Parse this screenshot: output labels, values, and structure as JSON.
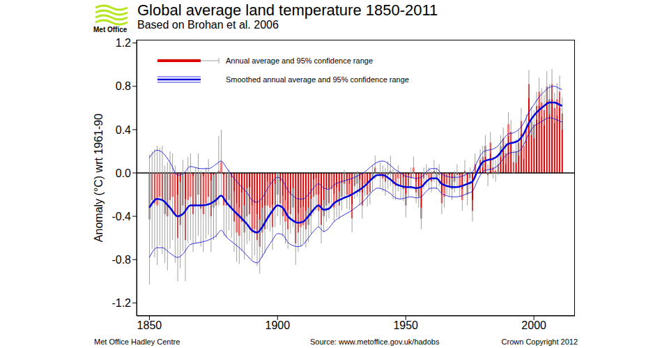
{
  "chart_data": {
    "type": "bar",
    "title": "Global average land temperature 1850-2011",
    "subtitle": "Based on Brohan et al. 2006",
    "logo": "Met Office",
    "footer_left": "Met Office Hadley Centre",
    "footer_center": "Source: www.metoffice.gov.uk/hadobs",
    "footer_right": "Crown Copyright 2012",
    "ylabel": "Anomaly (°C) wrt 1961-90",
    "xlim": [
      1845,
      2016
    ],
    "xticks": [
      1850,
      1900,
      1950,
      2000
    ],
    "ylim": [
      -1.32,
      1.23
    ],
    "yticks": [
      -1.2,
      -0.8,
      -0.4,
      {
        "value": 0,
        "label": "0.0"
      },
      0.4,
      0.8,
      1.2
    ],
    "grid": false,
    "legend": "upper left",
    "series": [
      {
        "name": "Annual average and 95% confidence range",
        "type": "bar",
        "color": "#dd0000",
        "x": [
          1850,
          1851,
          1852,
          1853,
          1854,
          1855,
          1856,
          1857,
          1858,
          1859,
          1860,
          1861,
          1862,
          1863,
          1864,
          1865,
          1866,
          1867,
          1868,
          1869,
          1870,
          1871,
          1872,
          1873,
          1874,
          1875,
          1876,
          1877,
          1878,
          1879,
          1880,
          1881,
          1882,
          1883,
          1884,
          1885,
          1886,
          1887,
          1888,
          1889,
          1890,
          1891,
          1892,
          1893,
          1894,
          1895,
          1896,
          1897,
          1898,
          1899,
          1900,
          1901,
          1902,
          1903,
          1904,
          1905,
          1906,
          1907,
          1908,
          1909,
          1910,
          1911,
          1912,
          1913,
          1914,
          1915,
          1916,
          1917,
          1918,
          1919,
          1920,
          1921,
          1922,
          1923,
          1924,
          1925,
          1926,
          1927,
          1928,
          1929,
          1930,
          1931,
          1932,
          1933,
          1934,
          1935,
          1936,
          1937,
          1938,
          1939,
          1940,
          1941,
          1942,
          1943,
          1944,
          1945,
          1946,
          1947,
          1948,
          1949,
          1950,
          1951,
          1952,
          1953,
          1954,
          1955,
          1956,
          1957,
          1958,
          1959,
          1960,
          1961,
          1962,
          1963,
          1964,
          1965,
          1966,
          1967,
          1968,
          1969,
          1970,
          1971,
          1972,
          1973,
          1974,
          1975,
          1976,
          1977,
          1978,
          1979,
          1980,
          1981,
          1982,
          1983,
          1984,
          1985,
          1986,
          1987,
          1988,
          1989,
          1990,
          1991,
          1992,
          1993,
          1994,
          1995,
          1996,
          1997,
          1998,
          1999,
          2000,
          2001,
          2002,
          2003,
          2004,
          2005,
          2006,
          2007,
          2008,
          2009,
          2010,
          2011
        ],
        "values": [
          -0.43,
          -0.25,
          -0.28,
          -0.3,
          -0.22,
          -0.25,
          -0.38,
          -0.4,
          -0.25,
          -0.22,
          -0.38,
          -0.6,
          -0.48,
          -0.3,
          -0.62,
          -0.25,
          -0.22,
          -0.38,
          -0.3,
          -0.2,
          -0.33,
          -0.38,
          -0.28,
          -0.22,
          -0.4,
          -0.32,
          -0.3,
          0.02,
          0.1,
          -0.3,
          -0.3,
          -0.25,
          -0.32,
          -0.45,
          -0.55,
          -0.58,
          -0.45,
          -0.55,
          -0.4,
          -0.38,
          -0.55,
          -0.52,
          -0.62,
          -0.68,
          -0.55,
          -0.52,
          -0.3,
          -0.32,
          -0.5,
          -0.3,
          -0.2,
          -0.28,
          -0.4,
          -0.45,
          -0.52,
          -0.38,
          -0.32,
          -0.65,
          -0.55,
          -0.5,
          -0.48,
          -0.52,
          -0.48,
          -0.4,
          -0.22,
          -0.2,
          -0.35,
          -0.48,
          -0.4,
          -0.3,
          -0.28,
          -0.15,
          -0.32,
          -0.27,
          -0.3,
          -0.22,
          -0.1,
          -0.2,
          -0.22,
          -0.42,
          -0.12,
          -0.1,
          -0.18,
          -0.3,
          -0.1,
          -0.2,
          -0.18,
          -0.05,
          0.05,
          0.0,
          -0.02,
          -0.05,
          -0.08,
          -0.02,
          0.02,
          -0.1,
          -0.12,
          -0.05,
          -0.12,
          -0.15,
          -0.3,
          -0.12,
          -0.05,
          0.05,
          -0.18,
          -0.22,
          -0.42,
          -0.05,
          -0.02,
          -0.05,
          -0.08,
          0.02,
          -0.05,
          -0.02,
          -0.28,
          -0.22,
          -0.1,
          -0.12,
          -0.15,
          -0.08,
          -0.02,
          -0.12,
          -0.25,
          0.02,
          -0.2,
          -0.05,
          -0.35,
          0.08,
          0.0,
          0.12,
          0.15,
          0.25,
          -0.02,
          0.28,
          0.05,
          0.02,
          0.08,
          0.25,
          0.32,
          0.18,
          0.45,
          0.38,
          0.1,
          0.2,
          0.28,
          0.48,
          0.25,
          0.42,
          0.82,
          0.48,
          0.45,
          0.62,
          0.75,
          0.65,
          0.58,
          0.8,
          0.68,
          0.82,
          0.6,
          0.68,
          0.75,
          0.55
        ],
        "error": [
          0.6,
          0.45,
          0.5,
          0.55,
          0.45,
          0.5,
          0.45,
          0.5,
          0.45,
          0.4,
          0.45,
          0.4,
          0.4,
          0.42,
          0.38,
          0.4,
          0.4,
          0.35,
          0.35,
          0.38,
          0.35,
          0.35,
          0.33,
          0.35,
          0.33,
          0.3,
          0.3,
          0.32,
          0.3,
          0.28,
          0.3,
          0.28,
          0.28,
          0.28,
          0.27,
          0.26,
          0.27,
          0.25,
          0.26,
          0.25,
          0.25,
          0.24,
          0.24,
          0.25,
          0.23,
          0.22,
          0.22,
          0.22,
          0.21,
          0.2,
          0.2,
          0.2,
          0.19,
          0.2,
          0.18,
          0.18,
          0.18,
          0.2,
          0.18,
          0.18,
          0.17,
          0.17,
          0.16,
          0.16,
          0.16,
          0.15,
          0.15,
          0.17,
          0.15,
          0.15,
          0.14,
          0.14,
          0.13,
          0.14,
          0.13,
          0.13,
          0.13,
          0.13,
          0.12,
          0.13,
          0.12,
          0.12,
          0.12,
          0.12,
          0.11,
          0.11,
          0.11,
          0.12,
          0.11,
          0.11,
          0.12,
          0.12,
          0.13,
          0.13,
          0.14,
          0.14,
          0.13,
          0.12,
          0.12,
          0.11,
          0.11,
          0.1,
          0.1,
          0.1,
          0.1,
          0.1,
          0.1,
          0.1,
          0.1,
          0.1,
          0.1,
          0.1,
          0.1,
          0.1,
          0.1,
          0.1,
          0.1,
          0.1,
          0.1,
          0.1,
          0.1,
          0.1,
          0.1,
          0.1,
          0.1,
          0.1,
          0.1,
          0.1,
          0.1,
          0.1,
          0.1,
          0.1,
          0.1,
          0.1,
          0.1,
          0.1,
          0.1,
          0.1,
          0.1,
          0.1,
          0.11,
          0.11,
          0.11,
          0.11,
          0.12,
          0.12,
          0.12,
          0.12,
          0.13,
          0.13,
          0.13,
          0.13,
          0.13,
          0.13,
          0.14,
          0.14,
          0.14,
          0.14,
          0.14,
          0.15,
          0.15,
          0.15
        ]
      },
      {
        "name": "Smoothed annual average and 95% confidence range",
        "type": "line",
        "color": "#0000dd",
        "x": [
          1850,
          1853,
          1855,
          1858,
          1861,
          1863,
          1866,
          1870,
          1873,
          1876,
          1878,
          1880,
          1883,
          1886,
          1888,
          1890,
          1892,
          1894,
          1896,
          1898,
          1900,
          1902,
          1904,
          1906,
          1908,
          1910,
          1912,
          1914,
          1916,
          1918,
          1920,
          1922,
          1925,
          1928,
          1931,
          1934,
          1937,
          1939,
          1941,
          1944,
          1946,
          1948,
          1950,
          1952,
          1954,
          1956,
          1958,
          1960,
          1962,
          1964,
          1966,
          1968,
          1970,
          1972,
          1974,
          1976,
          1978,
          1980,
          1982,
          1984,
          1986,
          1988,
          1990,
          1992,
          1994,
          1996,
          1998,
          2000,
          2002,
          2004,
          2006,
          2008,
          2010,
          2011
        ],
        "values": [
          -0.32,
          -0.24,
          -0.25,
          -0.32,
          -0.4,
          -0.38,
          -0.3,
          -0.3,
          -0.29,
          -0.25,
          -0.21,
          -0.27,
          -0.35,
          -0.42,
          -0.47,
          -0.53,
          -0.55,
          -0.5,
          -0.42,
          -0.35,
          -0.3,
          -0.32,
          -0.4,
          -0.44,
          -0.46,
          -0.45,
          -0.4,
          -0.34,
          -0.3,
          -0.34,
          -0.33,
          -0.28,
          -0.24,
          -0.21,
          -0.17,
          -0.12,
          -0.05,
          -0.02,
          -0.02,
          -0.06,
          -0.1,
          -0.12,
          -0.13,
          -0.13,
          -0.14,
          -0.13,
          -0.08,
          -0.05,
          -0.05,
          -0.1,
          -0.12,
          -0.13,
          -0.13,
          -0.12,
          -0.1,
          -0.08,
          0.02,
          0.1,
          0.12,
          0.13,
          0.16,
          0.22,
          0.27,
          0.28,
          0.3,
          0.36,
          0.46,
          0.53,
          0.58,
          0.62,
          0.65,
          0.65,
          0.63,
          0.62
        ],
        "lower": [
          -0.78,
          -0.69,
          -0.69,
          -0.74,
          -0.78,
          -0.75,
          -0.66,
          -0.64,
          -0.62,
          -0.58,
          -0.53,
          -0.59,
          -0.65,
          -0.71,
          -0.76,
          -0.81,
          -0.83,
          -0.77,
          -0.69,
          -0.62,
          -0.56,
          -0.57,
          -0.64,
          -0.67,
          -0.68,
          -0.66,
          -0.6,
          -0.54,
          -0.5,
          -0.54,
          -0.51,
          -0.45,
          -0.4,
          -0.36,
          -0.31,
          -0.25,
          -0.17,
          -0.14,
          -0.15,
          -0.19,
          -0.23,
          -0.24,
          -0.23,
          -0.22,
          -0.23,
          -0.22,
          -0.17,
          -0.14,
          -0.14,
          -0.19,
          -0.21,
          -0.22,
          -0.22,
          -0.21,
          -0.19,
          -0.17,
          -0.07,
          0.01,
          0.03,
          0.04,
          0.07,
          0.13,
          0.18,
          0.19,
          0.2,
          0.26,
          0.36,
          0.43,
          0.46,
          0.49,
          0.51,
          0.5,
          0.48,
          0.47
        ],
        "upper": [
          0.14,
          0.21,
          0.19,
          0.1,
          -0.02,
          -0.01,
          0.06,
          0.04,
          0.04,
          0.08,
          0.11,
          0.05,
          -0.05,
          -0.13,
          -0.18,
          -0.25,
          -0.27,
          -0.23,
          -0.15,
          -0.08,
          -0.04,
          -0.07,
          -0.16,
          -0.21,
          -0.24,
          -0.24,
          -0.2,
          -0.14,
          -0.1,
          -0.14,
          -0.15,
          -0.11,
          -0.08,
          -0.06,
          -0.03,
          0.01,
          0.07,
          0.1,
          0.11,
          0.07,
          0.03,
          0.0,
          -0.03,
          -0.04,
          -0.05,
          -0.04,
          0.01,
          0.04,
          0.04,
          -0.01,
          -0.03,
          -0.04,
          -0.04,
          -0.03,
          -0.01,
          0.01,
          0.11,
          0.19,
          0.21,
          0.22,
          0.25,
          0.31,
          0.36,
          0.37,
          0.4,
          0.46,
          0.56,
          0.63,
          0.7,
          0.75,
          0.79,
          0.8,
          0.78,
          0.77
        ]
      }
    ]
  }
}
